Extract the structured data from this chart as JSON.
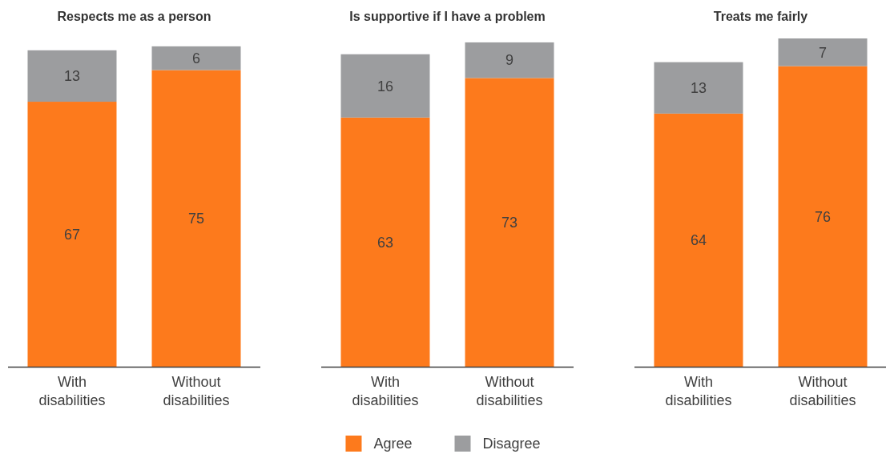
{
  "chart_data": [
    {
      "type": "bar",
      "stacked": true,
      "title": "Respects me as a person",
      "categories": [
        "With disabilities",
        "Without disabilities"
      ],
      "series": [
        {
          "color": "#fd7a1c",
          "values": [
            67,
            75
          ]
        },
        {
          "color": "#9c9d9f",
          "values": [
            13,
            6
          ]
        }
      ],
      "data_labels": true
    },
    {
      "type": "bar",
      "stacked": true,
      "title": "Is supportive if I have a problem",
      "categories": [
        "With disabilities",
        "Without disabilities"
      ],
      "series": [
        {
          "name": "Agree",
          "color": "#fd7a1c",
          "values": [
            63,
            73
          ]
        },
        {
          "name": "Disagree",
          "color": "#9c9d9f",
          "values": [
            16,
            9
          ]
        }
      ],
      "data_labels": true,
      "legend": "bottom"
    },
    {
      "type": "bar",
      "stacked": true,
      "title": "Treats me fairly",
      "categories": [
        "With disabilities",
        "Without disabilities"
      ],
      "series": [
        {
          "color": "#fd7a1c",
          "values": [
            64,
            76
          ]
        },
        {
          "color": "#9c9d9f",
          "values": [
            13,
            7
          ]
        }
      ],
      "data_labels": true
    }
  ]
}
